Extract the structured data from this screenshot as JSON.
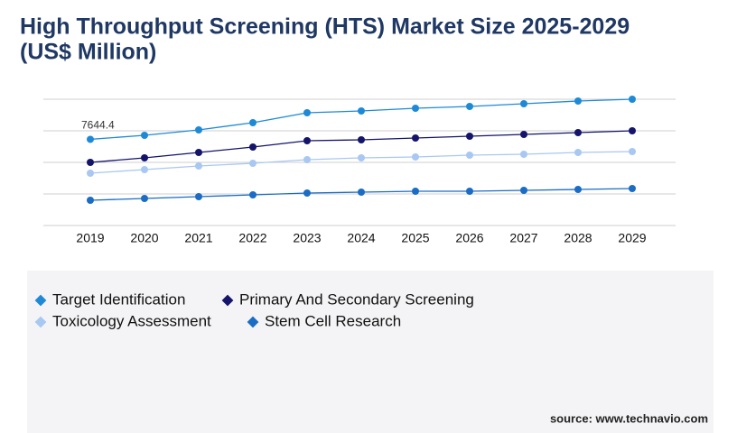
{
  "chart_data": {
    "type": "line",
    "title_lines": [
      "High Throughput Screening (HTS) Market Size 2025-2029",
      "(US$ Million)"
    ],
    "categories": [
      "2019",
      "2020",
      "2021",
      "2022",
      "2023",
      "2024",
      "2025",
      "2026",
      "2027",
      "2028",
      "2029"
    ],
    "series": [
      {
        "name": "Target Identification",
        "color": "#1e8ad6",
        "values": [
          7644.4,
          8000,
          8480,
          9120,
          10000,
          10160,
          10400,
          10560,
          10800,
          11040,
          11200
        ]
      },
      {
        "name": "Primary And Secondary Screening",
        "color": "#14146b",
        "values": [
          5600,
          6000,
          6480,
          6960,
          7520,
          7600,
          7760,
          7920,
          8080,
          8240,
          8400
        ]
      },
      {
        "name": "Toxicology Assessment",
        "color": "#a8c8f2",
        "values": [
          4640,
          4960,
          5280,
          5520,
          5840,
          6000,
          6080,
          6240,
          6320,
          6480,
          6560
        ]
      },
      {
        "name": "Stem Cell Research",
        "color": "#1a6cc4",
        "values": [
          2240,
          2400,
          2560,
          2720,
          2880,
          2960,
          3040,
          3040,
          3120,
          3200,
          3280
        ]
      }
    ],
    "labeled_point": "chart_data.series.0.values.0",
    "ylim": [
      0,
      11200
    ],
    "yticks": [
      0,
      2800,
      5600,
      8400,
      11200
    ],
    "grid": true,
    "source": "source: www.technavio.com"
  }
}
